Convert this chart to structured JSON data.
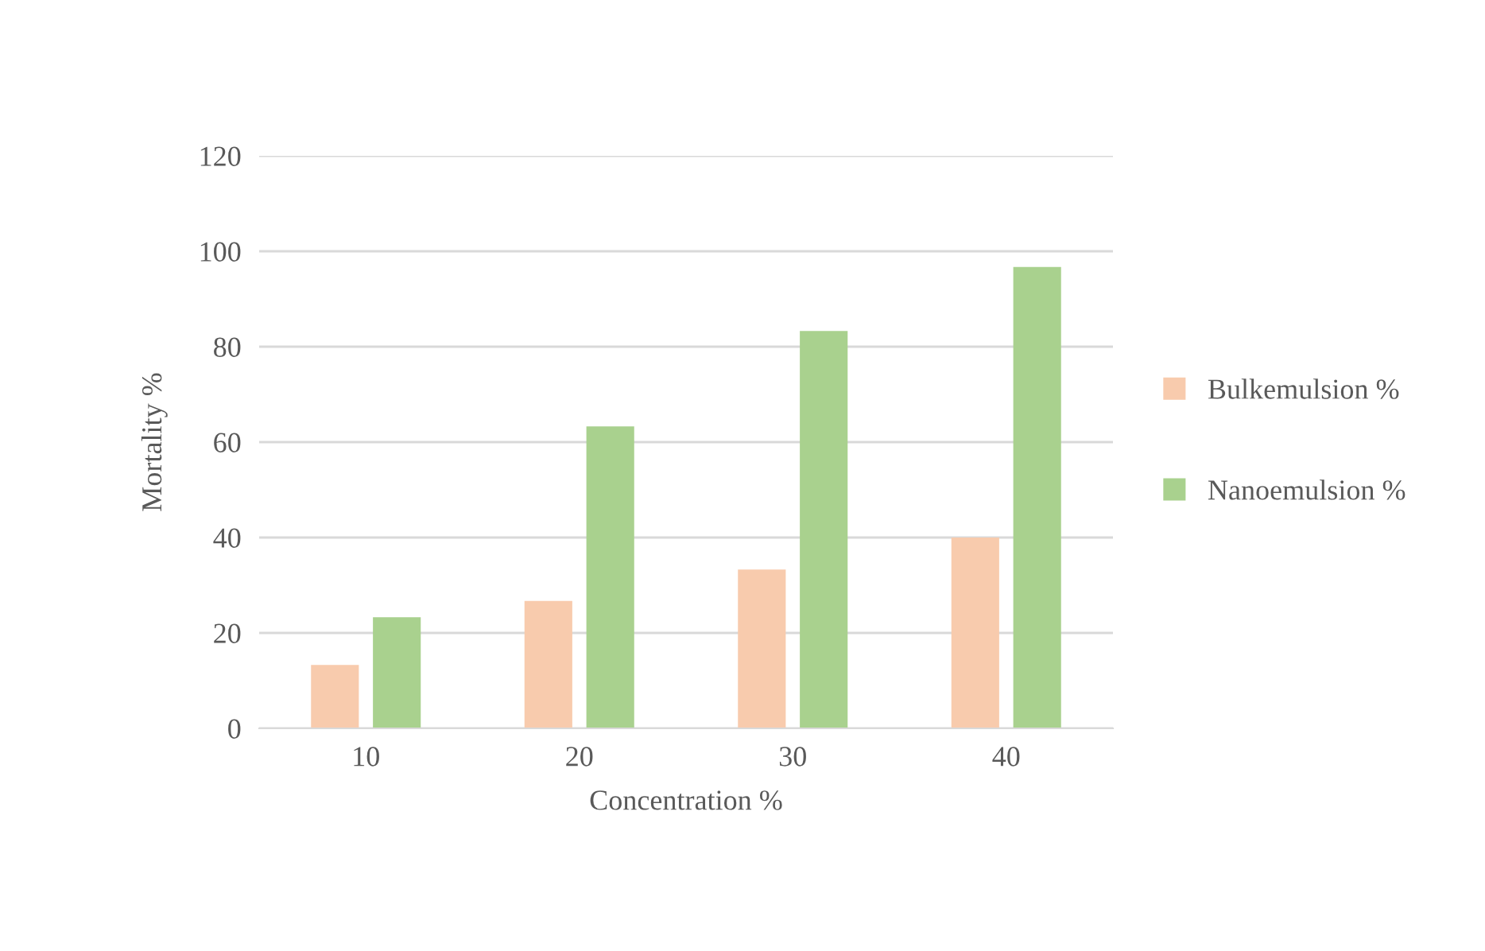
{
  "chart_data": {
    "type": "bar",
    "xlabel": "Concentration %",
    "ylabel": "Mortality %",
    "categories": [
      "10",
      "20",
      "30",
      "40"
    ],
    "series": [
      {
        "name": "Bulkemulsion %",
        "color": "#f8cbad",
        "values": [
          13.3,
          26.7,
          33.3,
          40
        ]
      },
      {
        "name": "Nanoemulsion %",
        "color": "#a9d18e",
        "values": [
          23.3,
          63.3,
          83.3,
          96.7
        ]
      }
    ],
    "ylim": [
      0,
      120
    ],
    "yticks": [
      0,
      20,
      40,
      60,
      80,
      100,
      120
    ],
    "grid": "y",
    "legend": "right"
  }
}
